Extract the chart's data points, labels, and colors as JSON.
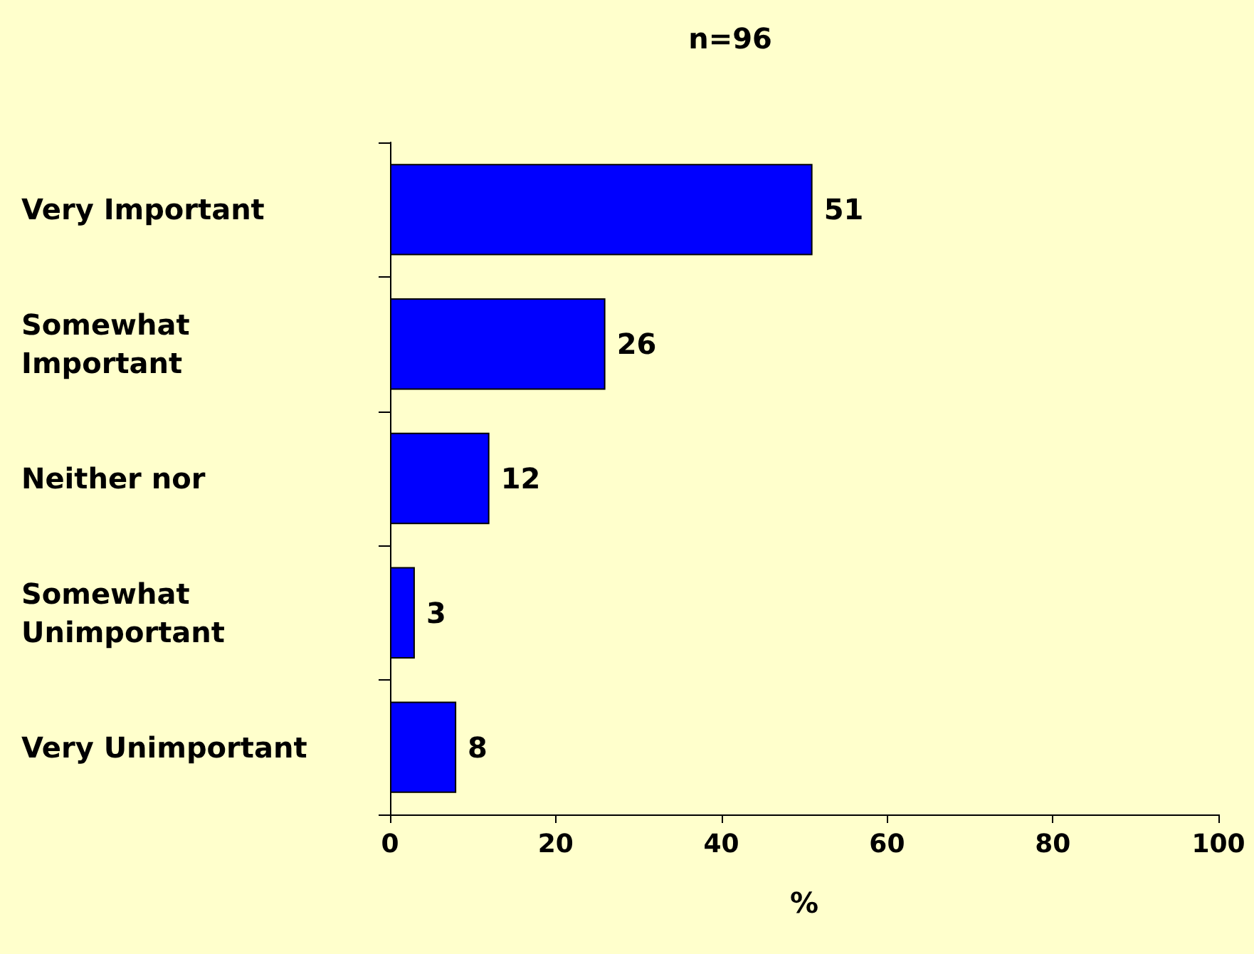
{
  "chart_data": {
    "type": "bar",
    "orientation": "horizontal",
    "title": "n=96",
    "xlabel": "%",
    "categories": [
      "Very Important",
      "Somewhat Important",
      "Neither nor",
      "Somewhat Unimportant",
      "Very Unimportant"
    ],
    "values": [
      51,
      26,
      12,
      3,
      8
    ],
    "color": "#0000ff",
    "xlim": [
      0,
      100
    ],
    "xticks": [
      0,
      20,
      40,
      60,
      80,
      100
    ],
    "grid": false,
    "data_labels": true
  }
}
